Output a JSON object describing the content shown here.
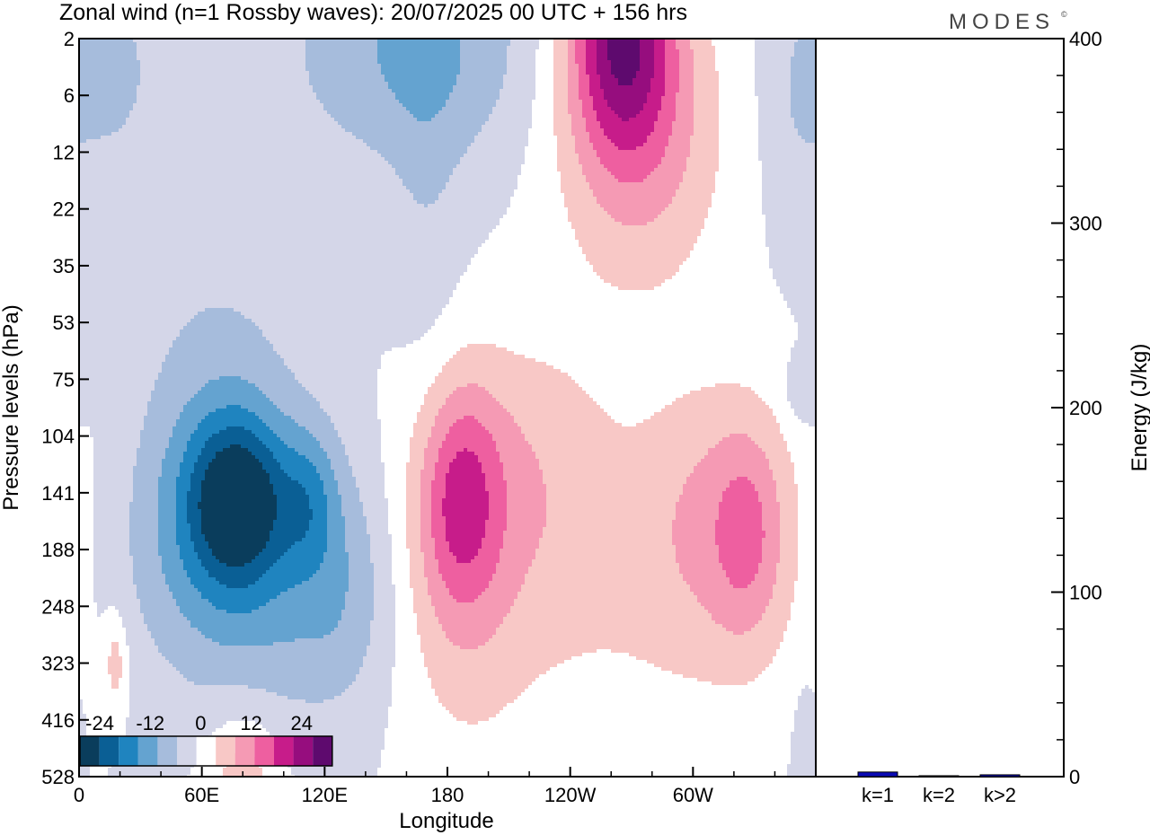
{
  "chart_data": {
    "type": "heatmap",
    "title": "Zonal wind (n=1 Rossby waves):  20/07/2025  00 UTC  + 156 hrs",
    "logo": "MODES",
    "logo_mark": "©",
    "xlabel": "Longitude",
    "ylabel": "Pressure levels (hPa)",
    "x_ticks": [
      "0",
      "60E",
      "120E",
      "180",
      "120W",
      "60W"
    ],
    "x_tick_deg": [
      0,
      60,
      120,
      180,
      240,
      300
    ],
    "xlim_deg": [
      0,
      360
    ],
    "y_levels_hPa": [
      "2",
      "6",
      "12",
      "22",
      "35",
      "53",
      "75",
      "104",
      "141",
      "188",
      "248",
      "323",
      "416",
      "528"
    ],
    "y_axis": "pressure-level index, top = 2 hPa, bottom = 528 hPa",
    "colorbar": {
      "tick_labels": [
        "-24",
        "-12",
        "0",
        "12",
        "24"
      ],
      "tick_values": [
        -24,
        -12,
        0,
        12,
        24
      ],
      "bounds": [
        -30,
        30
      ],
      "colors": [
        "#0a3d5c",
        "#0a5f95",
        "#1f84bf",
        "#64a3d0",
        "#a6bcdc",
        "#d4d6e8",
        "#ffffff",
        "#f8c8c6",
        "#f59ab4",
        "#ee5fa0",
        "#c71c8a",
        "#960d7e",
        "#5e0a6e"
      ]
    },
    "contour_features": [
      {
        "label": "negative",
        "lon": 78,
        "level": "141",
        "min": -24
      },
      {
        "label": "negative",
        "lon": 113,
        "level": "141",
        "min": -18
      },
      {
        "label": "positive",
        "lon": 186,
        "level": "141",
        "max": 18
      },
      {
        "label": "positive",
        "lon": 327,
        "level": "141",
        "max": 18
      },
      {
        "label": "positive",
        "lon": 268,
        "level": "2",
        "max": 30
      },
      {
        "label": "negative",
        "lon": 168,
        "level": "2",
        "min": -12
      }
    ],
    "energy_panel": {
      "ylabel": "Energy (J/kg)",
      "ylim": [
        0,
        400
      ],
      "y_ticks": [
        "0",
        "100",
        "200",
        "300",
        "400"
      ],
      "categories": [
        "k=1",
        "k=2",
        "k>2"
      ],
      "values": [
        2.5,
        0.5,
        1.0
      ],
      "bar_color": "#0a0ab4"
    }
  }
}
